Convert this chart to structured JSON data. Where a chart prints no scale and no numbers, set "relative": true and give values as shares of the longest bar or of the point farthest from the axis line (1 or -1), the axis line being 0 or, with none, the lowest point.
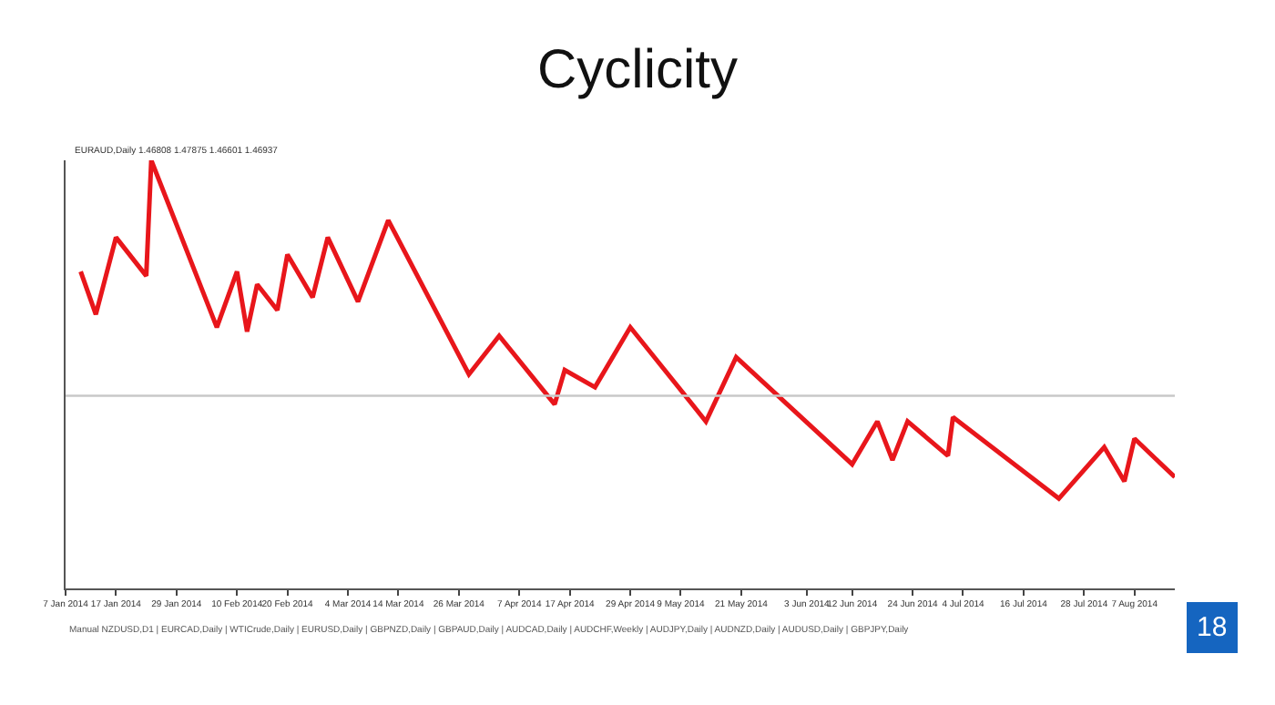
{
  "chart_data": {
    "type": "line",
    "title": "Cyclicity",
    "relative": true,
    "marker": "none",
    "line_style": "solid",
    "x": [
      "2014-01-10",
      "2014-01-13",
      "2014-01-17",
      "2014-01-23",
      "2014-01-24",
      "2014-02-06",
      "2014-02-10",
      "2014-02-12",
      "2014-02-14",
      "2014-02-18",
      "2014-02-20",
      "2014-02-25",
      "2014-02-28",
      "2014-03-06",
      "2014-03-12",
      "2014-03-28",
      "2014-04-03",
      "2014-04-14",
      "2014-04-16",
      "2014-04-22",
      "2014-04-29",
      "2014-05-14",
      "2014-05-20",
      "2014-06-12",
      "2014-06-17",
      "2014-06-20",
      "2014-06-23",
      "2014-07-01",
      "2014-07-02",
      "2014-07-23",
      "2014-08-01",
      "2014-08-05",
      "2014-08-07",
      "2014-08-15"
    ],
    "series": [
      {
        "color": "#e8161b",
        "values": [
          0.74,
          0.64,
          0.82,
          0.73,
          1.0,
          0.61,
          0.74,
          0.6,
          0.71,
          0.65,
          0.78,
          0.68,
          0.82,
          0.67,
          0.86,
          0.5,
          0.59,
          0.43,
          0.51,
          0.47,
          0.61,
          0.39,
          0.54,
          0.29,
          0.39,
          0.3,
          0.39,
          0.31,
          0.4,
          0.21,
          0.33,
          0.25,
          0.35,
          0.26
        ]
      }
    ],
    "xlim": [
      "2014-01-07",
      "2014-08-15"
    ],
    "xticks": [
      {
        "value": "2014-01-07",
        "label": "7 Jan 2014"
      },
      {
        "value": "2014-01-17",
        "label": "17 Jan 2014"
      },
      {
        "value": "2014-01-29",
        "label": "29 Jan 2014"
      },
      {
        "value": "2014-02-10",
        "label": "10 Feb 2014"
      },
      {
        "value": "2014-02-20",
        "label": "20 Feb 2014"
      },
      {
        "value": "2014-03-04",
        "label": "4 Mar 2014"
      },
      {
        "value": "2014-03-14",
        "label": "14 Mar 2014"
      },
      {
        "value": "2014-03-26",
        "label": "26 Mar 2014"
      },
      {
        "value": "2014-04-07",
        "label": "7 Apr 2014"
      },
      {
        "value": "2014-04-17",
        "label": "17 Apr 2014"
      },
      {
        "value": "2014-04-29",
        "label": "29 Apr 2014"
      },
      {
        "value": "2014-05-09",
        "label": "9 May 2014"
      },
      {
        "value": "2014-05-21",
        "label": "21 May 2014"
      },
      {
        "value": "2014-06-03",
        "label": "3 Jun 2014"
      },
      {
        "value": "2014-06-12",
        "label": "12 Jun 2014"
      },
      {
        "value": "2014-06-24",
        "label": "24 Jun 2014"
      },
      {
        "value": "2014-07-04",
        "label": "4 Jul 2014"
      },
      {
        "value": "2014-07-16",
        "label": "16 Jul 2014"
      },
      {
        "value": "2014-07-28",
        "label": "28 Jul 2014"
      },
      {
        "value": "2014-08-07",
        "label": "7 Aug 2014"
      }
    ],
    "ref_lines": [
      {
        "axis": "y",
        "value": 0.45,
        "color": "#c8c8c8"
      }
    ],
    "annotations": [
      "EURAUD,Daily 1.46808 1.47875 1.46601 1.46937",
      "Manual NZDUSD,D1 | EURCAD,Daily | WTICrude,Daily | EURUSD,Daily | GBPNZD,Daily | GBPAUD,Daily | AUDCAD,Daily | AUDCHF,Weekly | AUDJPY,Daily | AUDNZD,Daily | AUDUSD,Daily | GBPJPY,Daily",
      "18"
    ]
  }
}
